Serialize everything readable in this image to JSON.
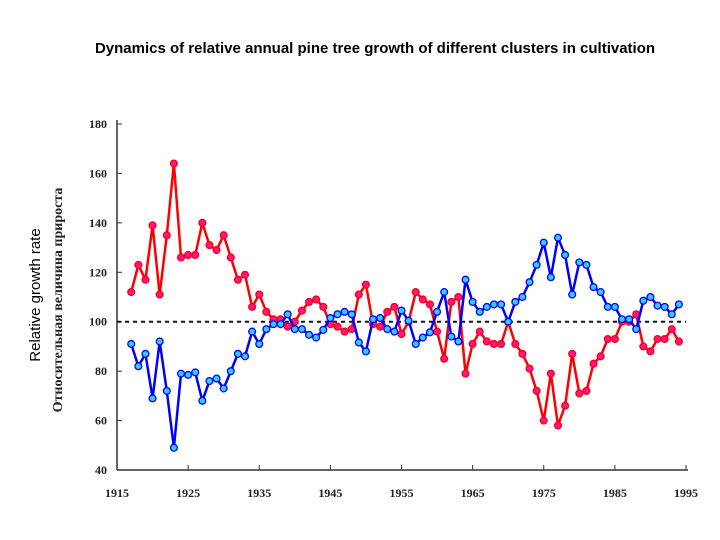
{
  "title": "Dynamics of relative annual pine tree growth of different clusters in cultivation",
  "chart_data": {
    "type": "line",
    "title": "Dynamics of relative annual pine tree growth of different clusters in cultivation",
    "xlabel": "",
    "ylabel": "Relative growth rate",
    "ylabel_original": "Относительная величина прироста",
    "xlim": [
      1915,
      1995
    ],
    "ylim": [
      40,
      180
    ],
    "xticks": [
      1915,
      1925,
      1935,
      1945,
      1955,
      1965,
      1975,
      1985,
      1995
    ],
    "yticks": [
      40,
      60,
      80,
      100,
      120,
      140,
      160,
      180
    ],
    "reference_line": 100,
    "grid": false,
    "x_start": 1917,
    "series": [
      {
        "color": "#ff0000",
        "marker_color": "#ff1493",
        "values": [
          112,
          123,
          117,
          139,
          111,
          135,
          164,
          126,
          127,
          127,
          140,
          131,
          129,
          135,
          126,
          117,
          119,
          106,
          111,
          104,
          101,
          101,
          98,
          100,
          104.5,
          108,
          109,
          106,
          99,
          98,
          96,
          97,
          111,
          115,
          99,
          98,
          104,
          106,
          95,
          100,
          112,
          109,
          107,
          96,
          85,
          108,
          110,
          79,
          91,
          96,
          92,
          91,
          91,
          100,
          91,
          87,
          81,
          72,
          60,
          79,
          58,
          66,
          87,
          71,
          72,
          83,
          86,
          93,
          93,
          100,
          100,
          103,
          90,
          88,
          93,
          93,
          97,
          92
        ]
      },
      {
        "color": "#0000ff",
        "marker_color": "#33ccff",
        "values": [
          91,
          82,
          87,
          69,
          92,
          72,
          49,
          79,
          78.5,
          79.5,
          68,
          76,
          77,
          73,
          80,
          87,
          86,
          96,
          91,
          97,
          99,
          99,
          103,
          97,
          97,
          94.7,
          93.6,
          96.7,
          101.5,
          103,
          104,
          103,
          91.6,
          88,
          101,
          101.5,
          97,
          96,
          104.5,
          100.4,
          91,
          93.6,
          95.7,
          104,
          112,
          94,
          92,
          117,
          108,
          104,
          106,
          107,
          107,
          100,
          108,
          110,
          116,
          123,
          132,
          118,
          134,
          127,
          111,
          124,
          123,
          114,
          112,
          106,
          106,
          101,
          101,
          97,
          108.5,
          110,
          106.5,
          106,
          103,
          107
        ]
      }
    ]
  }
}
